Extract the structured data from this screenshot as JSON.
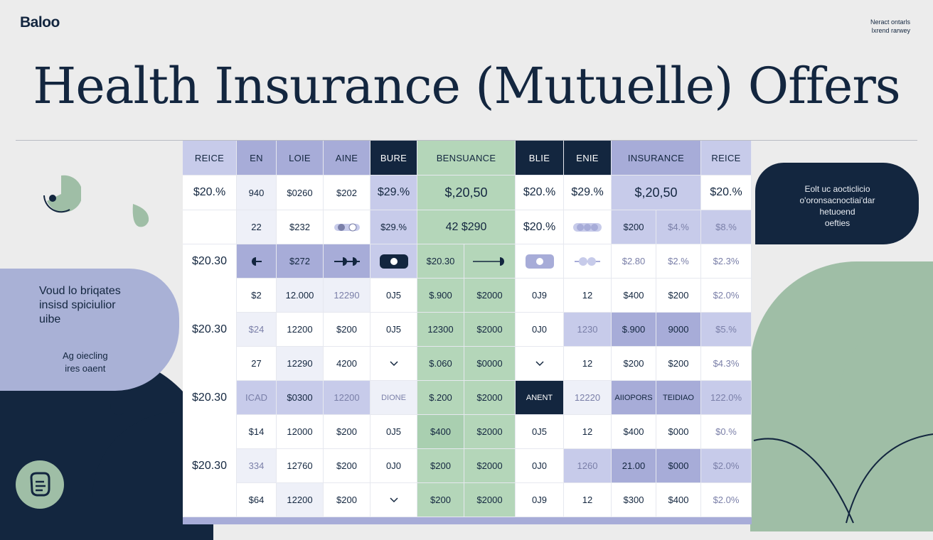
{
  "header": {
    "logo": "Baloo",
    "top_right_line1": "Neract ontarls",
    "top_right_line2": "Ixrend rarwey",
    "title": "Health Insurance (Mutuelle) Offers"
  },
  "left_bubble": {
    "text1_line1": "Voud lo briqates",
    "text1_line2": "insisd spiciulior",
    "text1_line3": "uibe",
    "text2_line1": "Ag oiecling",
    "text2_line2": "ires oaent"
  },
  "right_bubble": {
    "line1": "Eolt uc aocticlicio",
    "line2": "o'oronsacnoctiai'dar",
    "line3": "hetuoend",
    "line4": "oefties"
  },
  "colors": {
    "navy": "#13263f",
    "lavender": "#c7cbea",
    "green": "#b4d6b9",
    "background": "#ececec"
  },
  "table": {
    "headers": [
      "REICE",
      "EN",
      "LOIE",
      "AINE",
      "BURE",
      "BENSUANCE",
      "BLIE",
      "ENIE",
      "INSURANCE",
      "REICE"
    ],
    "row1": [
      "$20.%",
      "940",
      "$0260",
      "$202",
      "$29.%",
      "$,20,50",
      "$20.%",
      "$29.%",
      "$,20,50",
      "$20.%"
    ],
    "row2": [
      "",
      "22",
      "$232",
      "",
      "$29.%",
      "42 $290",
      "$20.%",
      "",
      "$200",
      "$4.%",
      "$8.%"
    ],
    "row3_label": "$20.30",
    "row3": [
      "$272",
      "$20.30",
      "$2.80",
      "$2.%",
      "$2.3%"
    ],
    "row4": [
      "$2",
      "12.000",
      "12290",
      "0J5",
      "$.900",
      "$2000",
      "0J9",
      "12",
      "$400",
      "$200",
      "$2.0%"
    ],
    "row5_label": "$20.30",
    "row5": [
      "$24",
      "12200",
      "$200",
      "0J5",
      "12300",
      "$2000",
      "0J0",
      "1230",
      "$.900",
      "9000",
      "$5.%"
    ],
    "row6": [
      "27",
      "12290",
      "4200",
      "$.060",
      "$0000",
      "12",
      "$200",
      "$200",
      "$4.3%"
    ],
    "row7_label": "$20.30",
    "row7": [
      "ICAD",
      "$0300",
      "12200",
      "DIONE",
      "$.200",
      "$2000",
      "ANENT",
      "12220",
      "AIIOPORS",
      "TEIDIAO",
      "122.0%"
    ],
    "row8": [
      "$14",
      "12000",
      "$200",
      "0J5",
      "$400",
      "$2000",
      "0J5",
      "12",
      "$400",
      "$000",
      "$0.%"
    ],
    "row9_label": "$20.30",
    "row9": [
      "334",
      "12760",
      "$200",
      "0J0",
      "$200",
      "$2000",
      "0J0",
      "1260",
      "21.00",
      "$000",
      "$2.0%"
    ],
    "row10": [
      "$64",
      "12200",
      "$200",
      "$200",
      "$2000",
      "0J9",
      "12",
      "$300",
      "$400",
      "$2.0%"
    ]
  }
}
